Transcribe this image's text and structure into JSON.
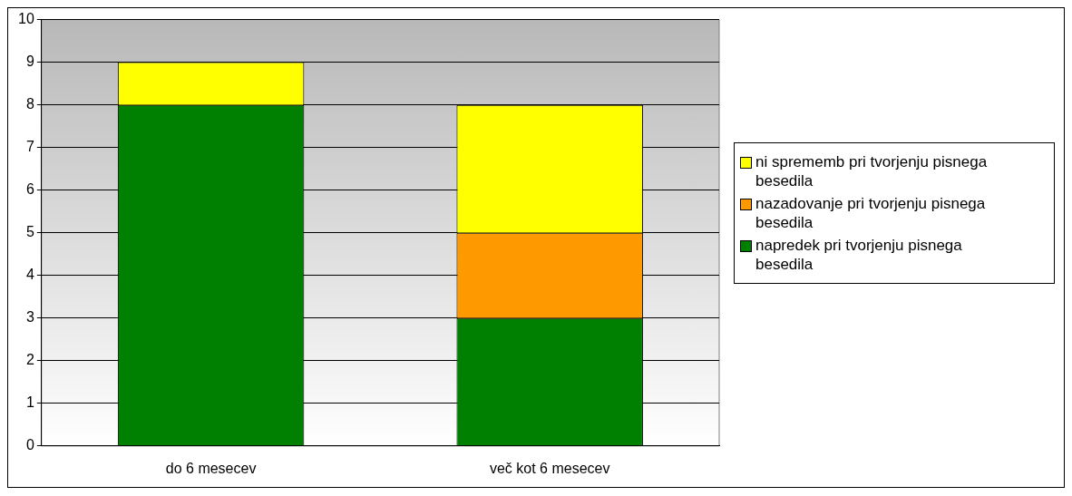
{
  "chart_data": {
    "type": "bar",
    "stacked": true,
    "categories": [
      "do 6 mesecev",
      "več kot 6 mesecev"
    ],
    "series": [
      {
        "name": "napredek pri tvorjenju pisnega besedila",
        "color": "#008000",
        "values": [
          8,
          3
        ]
      },
      {
        "name": "nazadovanje pri tvorjenju pisnega besedila",
        "color": "#ff9900",
        "values": [
          0,
          2
        ]
      },
      {
        "name": "ni sprememb pri tvorjenju pisnega besedila",
        "color": "#ffff00",
        "values": [
          1,
          3
        ]
      }
    ],
    "ylim": [
      0,
      10
    ],
    "yticks": [
      0,
      1,
      2,
      3,
      4,
      5,
      6,
      7,
      8,
      9,
      10
    ],
    "grid": "y",
    "legend": "right"
  }
}
